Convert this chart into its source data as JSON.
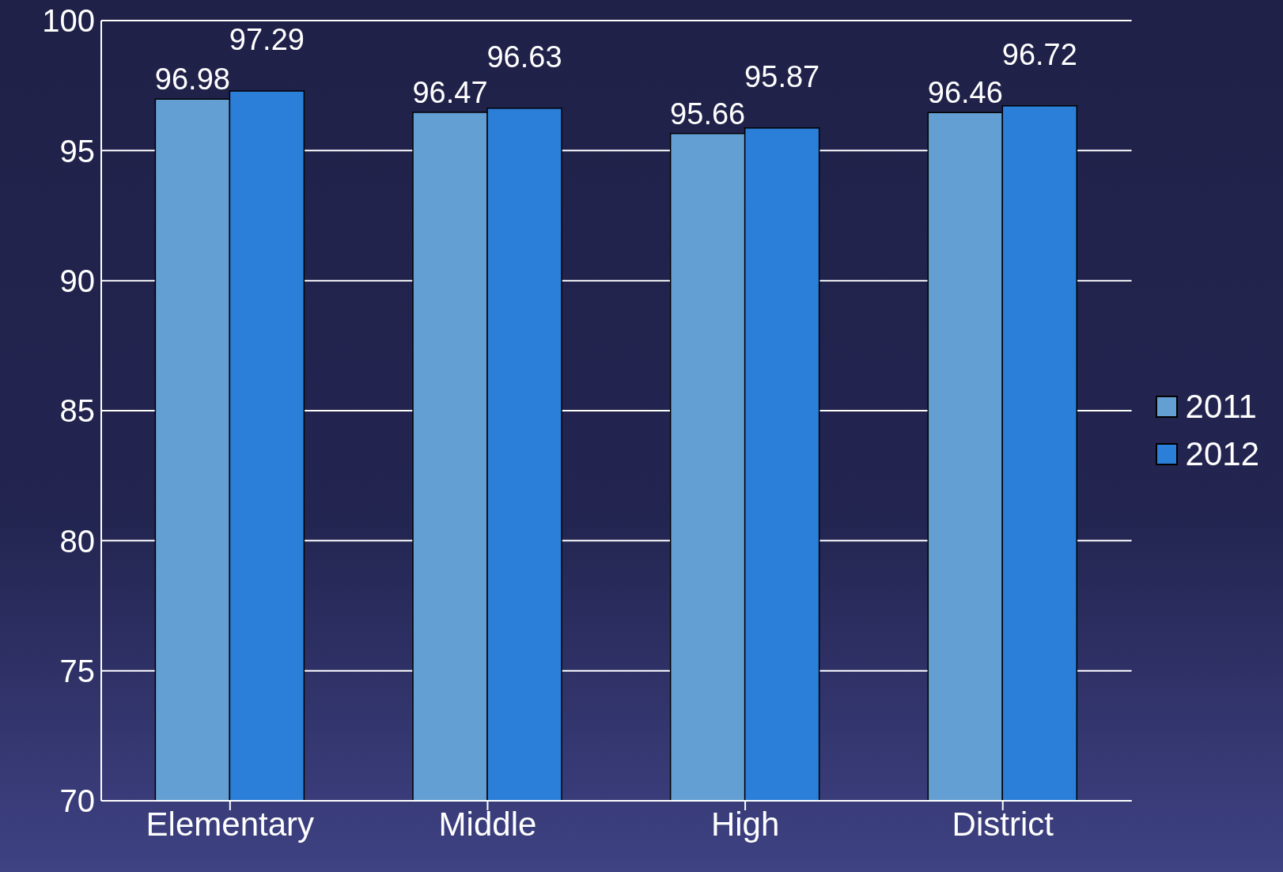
{
  "chart_data": {
    "type": "bar",
    "categories": [
      "Elementary",
      "Middle",
      "High",
      "District"
    ],
    "series": [
      {
        "name": "2011",
        "color": "#639fd2",
        "values": [
          96.98,
          96.47,
          95.66,
          96.46
        ]
      },
      {
        "name": "2012",
        "color": "#2b7fd8",
        "values": [
          97.29,
          96.63,
          95.87,
          96.72
        ]
      }
    ],
    "ylim": [
      70,
      100
    ],
    "yticks": [
      70,
      75,
      80,
      85,
      90,
      95,
      100
    ],
    "grid": "y",
    "legend": "right",
    "data_labels": true
  }
}
